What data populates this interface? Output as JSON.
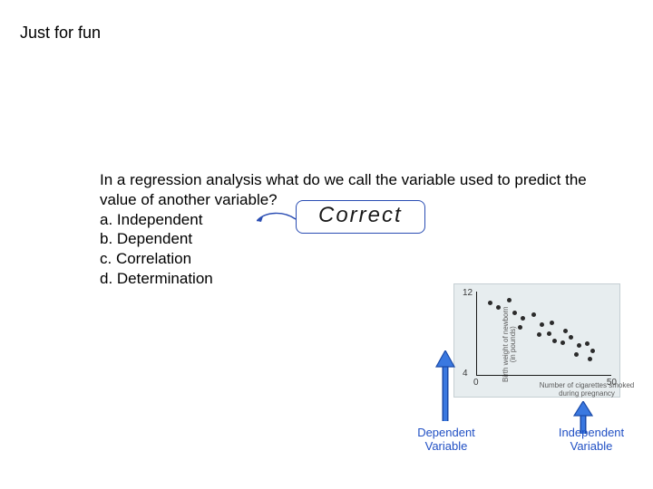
{
  "title": "Just for fun",
  "question": "In a regression analysis what do we call the variable used to predict the value of another variable?",
  "options": {
    "a": "a. Independent",
    "b": "b. Dependent",
    "c": "c. Correlation",
    "d": "d. Determination"
  },
  "callout": {
    "text": "Correct",
    "border_color": "#2a4db3",
    "arrow_color": "#2a4db3"
  },
  "figure": {
    "type": "scatter",
    "bg": "#e7edef",
    "border": "#c5cfd3",
    "axis_color": "#1a1a1a",
    "point_color": "#2b2b2b",
    "xlim": [
      0,
      50
    ],
    "ylim": [
      4,
      12
    ],
    "yticks": [
      {
        "v": 12,
        "pos": "top"
      },
      {
        "v": 4,
        "pos": "bot"
      }
    ],
    "xticks": [
      {
        "v": 0,
        "pos": "l"
      },
      {
        "v": 50,
        "pos": "r"
      }
    ],
    "ylabel_line1": "Birth weight of newborn",
    "ylabel_line2": "(in pounds)",
    "xlabel_line1": "Number of cigarettes smoked",
    "xlabel_line2": "during pregnancy",
    "points": [
      {
        "x": 5,
        "y": 10.9
      },
      {
        "x": 8,
        "y": 10.5
      },
      {
        "x": 12,
        "y": 11.2
      },
      {
        "x": 14,
        "y": 10.0
      },
      {
        "x": 17,
        "y": 9.4
      },
      {
        "x": 16,
        "y": 8.6
      },
      {
        "x": 21,
        "y": 9.8
      },
      {
        "x": 24,
        "y": 8.8
      },
      {
        "x": 23,
        "y": 7.9
      },
      {
        "x": 28,
        "y": 9.0
      },
      {
        "x": 27,
        "y": 8.0
      },
      {
        "x": 29,
        "y": 7.3
      },
      {
        "x": 33,
        "y": 8.2
      },
      {
        "x": 32,
        "y": 7.1
      },
      {
        "x": 35,
        "y": 7.6
      },
      {
        "x": 38,
        "y": 6.8
      },
      {
        "x": 37,
        "y": 6.0
      },
      {
        "x": 41,
        "y": 7.0
      },
      {
        "x": 43,
        "y": 6.3
      },
      {
        "x": 42,
        "y": 5.5
      }
    ],
    "dv_label_line1": "Dependent",
    "dv_label_line2": "Variable",
    "iv_label_line1": "Independent",
    "iv_label_line2": "Variable",
    "arrow_fill": "#3a78e0",
    "arrow_stroke": "#1a4aa8",
    "label_color": "#2150c4"
  }
}
